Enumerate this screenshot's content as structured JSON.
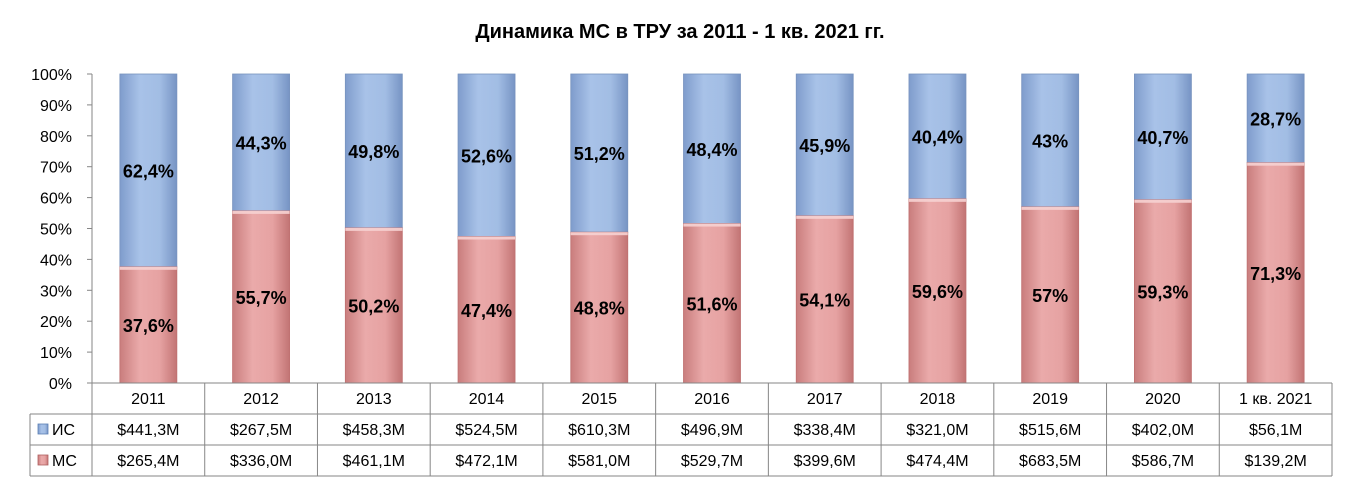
{
  "chart_data": {
    "type": "bar",
    "stacked": true,
    "percent_stacked": true,
    "title": "Динамика МС в ТРУ за 2011 - 1 кв. 2021 гг.",
    "categories": [
      "2011",
      "2012",
      "2013",
      "2014",
      "2015",
      "2016",
      "2017",
      "2018",
      "2019",
      "2020",
      "1 кв. 2021"
    ],
    "ylim": [
      0,
      100
    ],
    "yticks": [
      "0%",
      "10%",
      "20%",
      "30%",
      "40%",
      "50%",
      "60%",
      "70%",
      "80%",
      "90%",
      "100%"
    ],
    "grid": false,
    "legend": "data-table",
    "series": [
      {
        "name": "МС",
        "color": "#e6a0a0",
        "values": [
          37.6,
          55.7,
          50.2,
          47.4,
          48.8,
          51.6,
          54.1,
          59.6,
          57,
          59.3,
          71.3
        ],
        "labels": [
          "37,6%",
          "55,7%",
          "50,2%",
          "47,4%",
          "48,8%",
          "51,6%",
          "54,1%",
          "59,6%",
          "57%",
          "59,3%",
          "71,3%"
        ],
        "table": [
          "$265,4M",
          "$336,0M",
          "$461,1M",
          "$472,1M",
          "$581,0M",
          "$529,7M",
          "$399,6M",
          "$474,4M",
          "$683,5M",
          "$586,7M",
          "$139,2M"
        ]
      },
      {
        "name": "ИС",
        "color": "#9cb8e0",
        "values": [
          62.4,
          44.3,
          49.8,
          52.6,
          51.2,
          48.4,
          45.9,
          40.4,
          43,
          40.7,
          28.7
        ],
        "labels": [
          "62,4%",
          "44,3%",
          "49,8%",
          "52,6%",
          "51,2%",
          "48,4%",
          "45,9%",
          "40,4%",
          "43%",
          "40,7%",
          "28,7%"
        ],
        "table": [
          "$441,3M",
          "$267,5M",
          "$458,3M",
          "$524,5M",
          "$610,3M",
          "$496,9M",
          "$338,4M",
          "$321,0M",
          "$515,6M",
          "$402,0M",
          "$56,1M"
        ]
      }
    ]
  }
}
